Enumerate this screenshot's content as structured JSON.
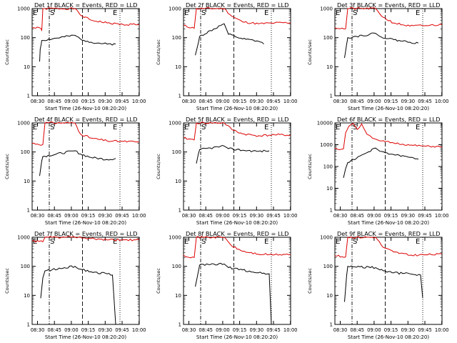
{
  "figure": {
    "ylabel": "Counts/sec",
    "xlabel": "Start Time (26-Nov-10 08:20:20)",
    "x_ticks": [
      "08:30",
      "08:45",
      "09:00",
      "09:15",
      "09:30",
      "09:45",
      "10:00"
    ],
    "y_ticks": [
      "1",
      "10",
      "100",
      "1000"
    ],
    "colors": {
      "events": "#000000",
      "lld": "#dd0000",
      "axis": "#000000"
    },
    "markers": [
      "S",
      "E",
      "E"
    ]
  },
  "chart_data": [
    {
      "type": "line",
      "title": "Det 1f BLACK = Events, RED = LLD",
      "ylim": [
        1,
        1000
      ],
      "scale": "log",
      "ylabel": "Counts/sec",
      "xlabel": "Start Time (26-Nov-10 08:20:20)",
      "x_ticks": [
        "08:30",
        "08:45",
        "09:00",
        "09:15",
        "09:30",
        "09:45",
        "10:00"
      ],
      "series": [
        {
          "color": "#dd0000",
          "values": [
            [
              0,
              220
            ],
            [
              0.08,
              210
            ],
            [
              0.09,
              180
            ],
            [
              0.1,
              1000
            ],
            [
              0.12,
              1000
            ],
            [
              0.4,
              1000
            ],
            [
              0.45,
              600
            ],
            [
              0.55,
              400
            ],
            [
              0.7,
              320
            ],
            [
              0.85,
              280
            ],
            [
              1,
              290
            ]
          ]
        },
        {
          "color": "#000000",
          "values": [
            [
              0.07,
              15
            ],
            [
              0.075,
              40
            ],
            [
              0.085,
              60
            ],
            [
              0.09,
              80
            ],
            [
              0.4,
              120
            ],
            [
              0.45,
              90
            ],
            [
              0.55,
              70
            ],
            [
              0.7,
              60
            ],
            [
              0.78,
              60
            ]
          ]
        }
      ]
    },
    {
      "type": "line",
      "title": "Det 2f BLACK = Events, RED = LLD",
      "ylim": [
        1,
        1000
      ],
      "scale": "log",
      "ylabel": "Counts/sec",
      "xlabel": "Start Time (26-Nov-10 08:20:20)",
      "x_ticks": [
        "08:30",
        "08:45",
        "09:00",
        "09:15",
        "09:30",
        "09:45",
        "10:00"
      ],
      "series": [
        {
          "color": "#dd0000",
          "values": [
            [
              0,
              260
            ],
            [
              0.1,
              210
            ],
            [
              0.12,
              1000
            ],
            [
              0.38,
              1000
            ],
            [
              0.45,
              550
            ],
            [
              0.55,
              350
            ],
            [
              0.7,
              300
            ],
            [
              0.85,
              320
            ],
            [
              1,
              330
            ]
          ]
        },
        {
          "color": "#000000",
          "values": [
            [
              0.11,
              25
            ],
            [
              0.14,
              70
            ],
            [
              0.15,
              110
            ],
            [
              0.38,
              300
            ],
            [
              0.42,
              130
            ],
            [
              0.55,
              90
            ],
            [
              0.7,
              75
            ],
            [
              0.75,
              60
            ]
          ]
        }
      ]
    },
    {
      "type": "line",
      "title": "Det 3f BLACK = Events, RED = LLD",
      "ylim": [
        1,
        1000
      ],
      "scale": "log",
      "ylabel": "Counts/sec",
      "xlabel": "Start Time (26-Nov-10 08:20:20)",
      "x_ticks": [
        "08:30",
        "08:45",
        "09:00",
        "09:15",
        "09:30",
        "09:45",
        "10:00"
      ],
      "series": [
        {
          "color": "#dd0000",
          "values": [
            [
              0,
              220
            ],
            [
              0.1,
              200
            ],
            [
              0.12,
              1000
            ],
            [
              0.38,
              1000
            ],
            [
              0.45,
              500
            ],
            [
              0.55,
              320
            ],
            [
              0.7,
              250
            ],
            [
              0.85,
              260
            ],
            [
              1,
              280
            ]
          ]
        },
        {
          "color": "#000000",
          "values": [
            [
              0.09,
              20
            ],
            [
              0.11,
              60
            ],
            [
              0.12,
              100
            ],
            [
              0.38,
              140
            ],
            [
              0.42,
              110
            ],
            [
              0.55,
              85
            ],
            [
              0.7,
              70
            ],
            [
              0.78,
              65
            ]
          ]
        }
      ]
    },
    {
      "type": "line",
      "title": "Det 4f BLACK = Events, RED = LLD",
      "ylim": [
        1,
        1000
      ],
      "scale": "log",
      "ylabel": "Counts/sec",
      "xlabel": "Start Time (26-Nov-10 08:20:20)",
      "x_ticks": [
        "08:30",
        "08:45",
        "09:00",
        "09:15",
        "09:30",
        "09:45",
        "10:00"
      ],
      "series": [
        {
          "color": "#dd0000",
          "values": [
            [
              0,
              200
            ],
            [
              0.1,
              180
            ],
            [
              0.12,
              1000
            ],
            [
              0.4,
              1000
            ],
            [
              0.45,
              420
            ],
            [
              0.55,
              300
            ],
            [
              0.7,
              240
            ],
            [
              0.85,
              230
            ],
            [
              1,
              220
            ]
          ]
        },
        {
          "color": "#000000",
          "values": [
            [
              0.07,
              15
            ],
            [
              0.09,
              50
            ],
            [
              0.1,
              70
            ],
            [
              0.4,
              110
            ],
            [
              0.45,
              85
            ],
            [
              0.55,
              65
            ],
            [
              0.7,
              55
            ],
            [
              0.78,
              60
            ]
          ]
        }
      ]
    },
    {
      "type": "line",
      "title": "Det 5f BLACK = Events, RED = LLD",
      "ylim": [
        1,
        1000
      ],
      "scale": "log",
      "ylabel": "Counts/sec",
      "xlabel": "Start Time (26-Nov-10 08:20:20)",
      "x_ticks": [
        "08:30",
        "08:45",
        "09:00",
        "09:15",
        "09:30",
        "09:45",
        "10:00"
      ],
      "series": [
        {
          "color": "#dd0000",
          "values": [
            [
              0,
              300
            ],
            [
              0.1,
              260
            ],
            [
              0.12,
              1000
            ],
            [
              0.38,
              1000
            ],
            [
              0.45,
              600
            ],
            [
              0.55,
              420
            ],
            [
              0.7,
              360
            ],
            [
              0.85,
              390
            ],
            [
              1,
              380
            ]
          ]
        },
        {
          "color": "#000000",
          "values": [
            [
              0.12,
              40
            ],
            [
              0.14,
              90
            ],
            [
              0.15,
              120
            ],
            [
              0.38,
              160
            ],
            [
              0.42,
              130
            ],
            [
              0.55,
              115
            ],
            [
              0.7,
              105
            ],
            [
              0.8,
              110
            ]
          ]
        }
      ]
    },
    {
      "type": "line",
      "title": "Det 6f BLACK = Events, RED = LLD",
      "ylim": [
        1,
        10000
      ],
      "scale": "log",
      "ylabel": "Counts/sec",
      "xlabel": "Start Time (26-Nov-10 08:20:20)",
      "x_ticks": [
        "08:30",
        "08:45",
        "09:00",
        "09:15",
        "09:30",
        "09:45",
        "10:00"
      ],
      "y_ticks": [
        "1",
        "10",
        "100",
        "1000",
        "10000"
      ],
      "series": [
        {
          "color": "#dd0000",
          "values": [
            [
              0,
              700
            ],
            [
              0.05,
              600
            ],
            [
              0.08,
              650
            ],
            [
              0.1,
              3500
            ],
            [
              0.13,
              7000
            ],
            [
              0.17,
              9500
            ],
            [
              0.21,
              5000
            ],
            [
              0.25,
              9000
            ],
            [
              0.3,
              3000
            ],
            [
              0.35,
              2000
            ],
            [
              0.38,
              1800
            ],
            [
              0.42,
              1500
            ],
            [
              0.55,
              1200
            ],
            [
              0.7,
              950
            ],
            [
              0.85,
              850
            ],
            [
              1,
              800
            ]
          ]
        },
        {
          "color": "#000000",
          "values": [
            [
              0.08,
              30
            ],
            [
              0.1,
              80
            ],
            [
              0.12,
              150
            ],
            [
              0.38,
              700
            ],
            [
              0.42,
              500
            ],
            [
              0.55,
              350
            ],
            [
              0.7,
              260
            ],
            [
              0.78,
              220
            ]
          ]
        }
      ]
    },
    {
      "type": "line",
      "title": "Det 7f BLACK = Events, RED = LLD",
      "ylim": [
        1,
        1000
      ],
      "scale": "log",
      "ylabel": "Counts/sec",
      "xlabel": "Start Time (26-Nov-10 08:20:20)",
      "x_ticks": [
        "08:30",
        "08:45",
        "09:00",
        "09:15",
        "09:30",
        "09:45",
        "10:00"
      ],
      "series": [
        {
          "color": "#dd0000",
          "values": [
            [
              0,
              750
            ],
            [
              0.1,
              700
            ],
            [
              0.12,
              1000
            ],
            [
              0.4,
              1000
            ],
            [
              0.55,
              900
            ],
            [
              0.7,
              800
            ],
            [
              0.85,
              820
            ],
            [
              1,
              800
            ]
          ]
        },
        {
          "color": "#000000",
          "values": [
            [
              0.08,
              8
            ],
            [
              0.1,
              40
            ],
            [
              0.12,
              70
            ],
            [
              0.4,
              100
            ],
            [
              0.45,
              80
            ],
            [
              0.55,
              65
            ],
            [
              0.7,
              55
            ],
            [
              0.75,
              50
            ],
            [
              0.78,
              1
            ]
          ]
        }
      ]
    },
    {
      "type": "line",
      "title": "Det 8f BLACK = Events, RED = LLD",
      "ylim": [
        1,
        1000
      ],
      "scale": "log",
      "ylabel": "Counts/sec",
      "xlabel": "Start Time (26-Nov-10 08:20:20)",
      "x_ticks": [
        "08:30",
        "08:45",
        "09:00",
        "09:15",
        "09:30",
        "09:45",
        "10:00"
      ],
      "series": [
        {
          "color": "#dd0000",
          "values": [
            [
              0,
              240
            ],
            [
              0.1,
              200
            ],
            [
              0.12,
              1000
            ],
            [
              0.38,
              1000
            ],
            [
              0.45,
              500
            ],
            [
              0.55,
              330
            ],
            [
              0.7,
              260
            ],
            [
              0.85,
              250
            ],
            [
              1,
              260
            ]
          ]
        },
        {
          "color": "#000000",
          "values": [
            [
              0.11,
              20
            ],
            [
              0.14,
              70
            ],
            [
              0.15,
              110
            ],
            [
              0.38,
              120
            ],
            [
              0.42,
              90
            ],
            [
              0.55,
              75
            ],
            [
              0.7,
              60
            ],
            [
              0.8,
              55
            ],
            [
              0.82,
              1
            ]
          ]
        }
      ]
    },
    {
      "type": "line",
      "title": "Det 9f BLACK = Events, RED = LLD",
      "ylim": [
        1,
        1000
      ],
      "scale": "log",
      "ylabel": "Counts/sec",
      "xlabel": "Start Time (26-Nov-10 08:20:20)",
      "x_ticks": [
        "08:30",
        "08:45",
        "09:00",
        "09:15",
        "09:30",
        "09:45",
        "10:00"
      ],
      "series": [
        {
          "color": "#dd0000",
          "values": [
            [
              0,
              230
            ],
            [
              0.1,
              210
            ],
            [
              0.12,
              1000
            ],
            [
              0.38,
              1000
            ],
            [
              0.45,
              450
            ],
            [
              0.55,
              310
            ],
            [
              0.7,
              240
            ],
            [
              0.85,
              250
            ],
            [
              1,
              260
            ]
          ]
        },
        {
          "color": "#000000",
          "values": [
            [
              0.09,
              6
            ],
            [
              0.11,
              50
            ],
            [
              0.12,
              100
            ],
            [
              0.38,
              90
            ],
            [
              0.42,
              75
            ],
            [
              0.55,
              60
            ],
            [
              0.7,
              55
            ],
            [
              0.8,
              50
            ],
            [
              0.82,
              8
            ]
          ]
        }
      ]
    }
  ]
}
